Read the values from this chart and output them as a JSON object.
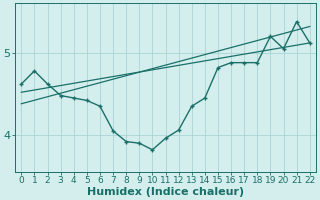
{
  "xlabel": "Humidex (Indice chaleur)",
  "bg_color": "#d4eeee",
  "line_color": "#1a7068",
  "grid_color": "#aad4d4",
  "xlim": [
    -0.5,
    22.5
  ],
  "ylim": [
    3.55,
    5.6
  ],
  "yticks": [
    4,
    5
  ],
  "xticks": [
    0,
    1,
    2,
    3,
    4,
    5,
    6,
    7,
    8,
    9,
    10,
    11,
    12,
    13,
    14,
    15,
    16,
    17,
    18,
    19,
    20,
    21,
    22
  ],
  "curve_x": [
    0,
    1,
    2,
    3,
    4,
    5,
    6,
    7,
    8,
    9,
    10,
    11,
    12,
    13,
    14,
    15,
    16,
    17,
    18,
    19,
    20,
    21,
    22
  ],
  "curve_y": [
    4.62,
    4.78,
    4.62,
    4.48,
    4.45,
    4.42,
    4.35,
    4.05,
    3.92,
    3.9,
    3.82,
    3.96,
    4.06,
    4.35,
    4.45,
    4.82,
    4.88,
    4.88,
    4.88,
    5.2,
    5.05,
    5.38,
    5.12
  ],
  "line1_x": [
    0,
    22
  ],
  "line1_y": [
    4.52,
    5.12
  ],
  "line2_x": [
    0,
    22
  ],
  "line2_y": [
    4.38,
    5.32
  ],
  "xlabel_fontsize": 8,
  "tick_fontsize": 6.5,
  "ytick_fontsize": 8
}
